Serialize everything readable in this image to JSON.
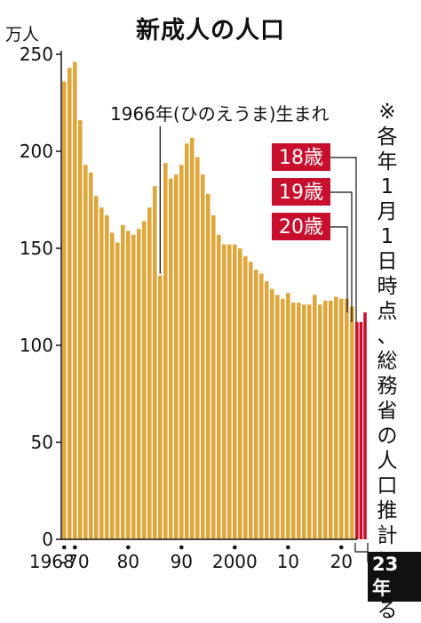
{
  "title": "新成人の人口",
  "unit": "万人",
  "annotation": "1966年(ひのえうま)生まれ",
  "note": "※各年1月1日時点、総務省の人口推計による",
  "final_year_label": "23年",
  "colors": {
    "bar": "#dfa63b",
    "bar_highlight": "#c8102e",
    "label_bg": "#c8102e",
    "axis": "#111111"
  },
  "chart_data": {
    "type": "bar",
    "title": "新成人の人口",
    "ylabel": "万人",
    "xlabel": "",
    "ylim": [
      0,
      250
    ],
    "yticks": [
      0,
      50,
      100,
      150,
      200,
      250
    ],
    "x_tick_labels": [
      {
        "year": 1968,
        "label": "1968"
      },
      {
        "year": 1970,
        "label": "-70"
      },
      {
        "year": 1980,
        "label": "80"
      },
      {
        "year": 1990,
        "label": "90"
      },
      {
        "year": 2000,
        "label": "2000"
      },
      {
        "year": 2010,
        "label": "10"
      },
      {
        "year": 2020,
        "label": "20"
      }
    ],
    "grid": false,
    "categories": [
      1968,
      1969,
      1970,
      1971,
      1972,
      1973,
      1974,
      1975,
      1976,
      1977,
      1978,
      1979,
      1980,
      1981,
      1982,
      1983,
      1984,
      1985,
      1986,
      1987,
      1988,
      1989,
      1990,
      1991,
      1992,
      1993,
      1994,
      1995,
      1996,
      1997,
      1998,
      1999,
      2000,
      2001,
      2002,
      2003,
      2004,
      2005,
      2006,
      2007,
      2008,
      2009,
      2010,
      2011,
      2012,
      2013,
      2014,
      2015,
      2016,
      2017,
      2018,
      2019,
      2020,
      2021,
      2022
    ],
    "values": [
      236,
      243,
      246,
      216,
      193,
      189,
      177,
      171,
      167,
      158,
      153,
      162,
      159,
      157,
      160,
      164,
      171,
      182,
      136,
      194,
      186,
      188,
      193,
      204,
      207,
      197,
      188,
      178,
      167,
      157,
      152,
      152,
      152,
      150,
      146,
      143,
      139,
      137,
      133,
      129,
      126,
      124,
      127,
      122,
      122,
      121,
      121,
      126,
      121,
      123,
      123,
      125,
      124,
      124,
      120
    ],
    "final_year": {
      "year": 2023,
      "label": "23年",
      "series": [
        {
          "name": "18歳",
          "value": 112
        },
        {
          "name": "19歳",
          "value": 112
        },
        {
          "name": "20歳",
          "value": 117
        }
      ]
    },
    "annotations": [
      {
        "year": 1966,
        "x": 1986,
        "text": "1966年(ひのえうま)生まれ"
      }
    ]
  }
}
